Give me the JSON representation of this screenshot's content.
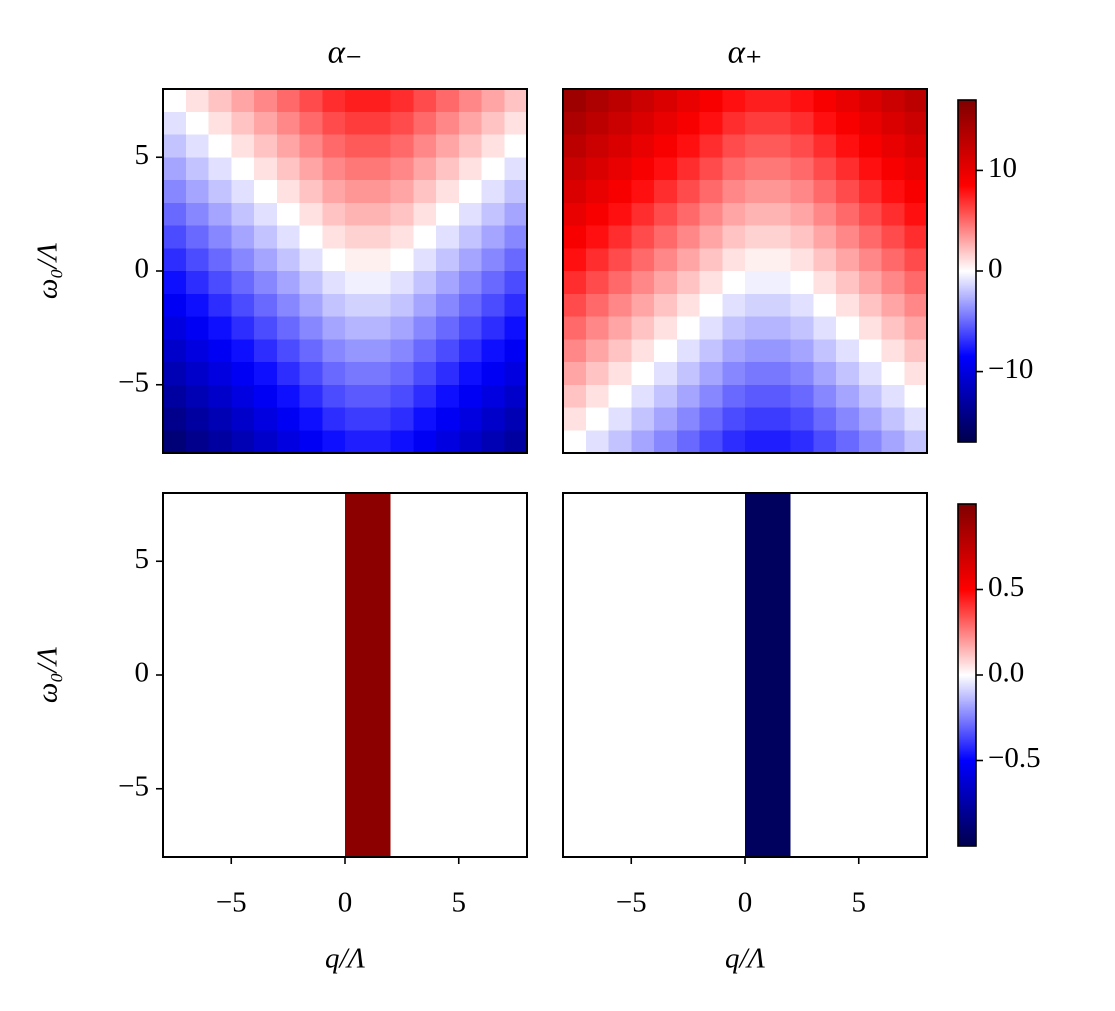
{
  "chart_data": [
    {
      "type": "heatmap",
      "title": "α₋",
      "colormap": "seismic",
      "clim": [
        -17,
        17
      ],
      "xlim": [
        -8,
        8
      ],
      "ylim": [
        -8,
        8
      ],
      "yticks": [
        {
          "value": -5,
          "label": "−5"
        },
        0,
        5
      ],
      "ylabel": "ω₀/Λ",
      "x": [
        -7.5,
        -6.5,
        -5.5,
        -4.5,
        -3.5,
        -2.5,
        -1.5,
        -0.5,
        0.5,
        1.5,
        2.5,
        3.5,
        4.5,
        5.5,
        6.5,
        7.5
      ],
      "y": [
        7.5,
        6.5,
        5.5,
        4.5,
        3.5,
        2.5,
        1.5,
        0.5,
        -0.5,
        -1.5,
        -2.5,
        -3.5,
        -4.5,
        -5.5,
        -6.5,
        -7.5
      ],
      "z": [
        [
          0,
          1,
          2,
          3,
          4,
          5,
          6,
          7,
          7.5,
          7.5,
          7,
          6,
          5,
          4,
          3,
          2
        ],
        [
          -1,
          0,
          1,
          2,
          3,
          4,
          5,
          6,
          6.5,
          6.5,
          6,
          5,
          4,
          3,
          2,
          1
        ],
        [
          -2,
          -1,
          0,
          1,
          2,
          3,
          4,
          5,
          5.5,
          5.5,
          5,
          4,
          3,
          2,
          1,
          0
        ],
        [
          -3,
          -2,
          -1,
          0,
          1,
          2,
          3,
          4,
          4.5,
          4.5,
          4,
          3,
          2,
          1,
          0,
          -1
        ],
        [
          -4,
          -3,
          -2,
          -1,
          0,
          1,
          2,
          3,
          3.5,
          3.5,
          3,
          2,
          1,
          0,
          -1,
          -2
        ],
        [
          -5,
          -4,
          -3,
          -2,
          -1,
          0,
          1,
          2,
          2.5,
          2.5,
          2,
          1,
          0,
          -1,
          -2,
          -3
        ],
        [
          -6,
          -5,
          -4,
          -3,
          -2,
          -1,
          0,
          1,
          1.5,
          1.5,
          1,
          0,
          -1,
          -2,
          -3,
          -4
        ],
        [
          -7,
          -6,
          -5,
          -4,
          -3,
          -2,
          -1,
          0,
          0.5,
          0.5,
          0,
          -1,
          -2,
          -3,
          -4,
          -5
        ],
        [
          -8,
          -7,
          -6,
          -5,
          -4,
          -3,
          -2,
          -1,
          -0.5,
          -0.5,
          -1,
          -2,
          -3,
          -4,
          -5,
          -6
        ],
        [
          -9,
          -8,
          -7,
          -6,
          -5,
          -4,
          -3,
          -2,
          -1.5,
          -1.5,
          -2,
          -3,
          -4,
          -5,
          -6,
          -7
        ],
        [
          -10,
          -9,
          -8,
          -7,
          -6,
          -5,
          -4,
          -3,
          -2.5,
          -2.5,
          -3,
          -4,
          -5,
          -6,
          -7,
          -8
        ],
        [
          -11,
          -10,
          -9,
          -8,
          -7,
          -6,
          -5,
          -4,
          -3.5,
          -3.5,
          -4,
          -5,
          -6,
          -7,
          -8,
          -9
        ],
        [
          -12,
          -11,
          -10,
          -9,
          -8,
          -7,
          -6,
          -5,
          -4.5,
          -4.5,
          -5,
          -6,
          -7,
          -8,
          -9,
          -10
        ],
        [
          -13,
          -12,
          -11,
          -10,
          -9,
          -8,
          -7,
          -6,
          -5.5,
          -5.5,
          -6,
          -7,
          -8,
          -9,
          -10,
          -11
        ],
        [
          -14,
          -13,
          -12,
          -11,
          -10,
          -9,
          -8,
          -7,
          -6.5,
          -6.5,
          -7,
          -8,
          -9,
          -10,
          -11,
          -12
        ],
        [
          -15,
          -14,
          -13,
          -12,
          -11,
          -10,
          -9,
          -8,
          -7.5,
          -7.5,
          -8,
          -9,
          -10,
          -11,
          -12,
          -13
        ]
      ]
    },
    {
      "type": "heatmap",
      "title": "α₊",
      "colormap": "seismic",
      "clim": [
        -17,
        17
      ],
      "xlim": [
        -8,
        8
      ],
      "ylim": [
        -8,
        8
      ],
      "colorbar_ticks": [
        {
          "value": -10,
          "label": "−10"
        },
        0,
        10
      ],
      "x": [
        -7.5,
        -6.5,
        -5.5,
        -4.5,
        -3.5,
        -2.5,
        -1.5,
        -0.5,
        0.5,
        1.5,
        2.5,
        3.5,
        4.5,
        5.5,
        6.5,
        7.5
      ],
      "y": [
        7.5,
        6.5,
        5.5,
        4.5,
        3.5,
        2.5,
        1.5,
        0.5,
        -0.5,
        -1.5,
        -2.5,
        -3.5,
        -4.5,
        -5.5,
        -6.5,
        -7.5
      ],
      "z": [
        [
          15,
          14,
          13,
          12,
          11,
          10,
          9,
          8,
          7.5,
          7.5,
          8,
          9,
          10,
          11,
          12,
          13
        ],
        [
          14,
          13,
          12,
          11,
          10,
          9,
          8,
          7,
          6.5,
          6.5,
          7,
          8,
          9,
          10,
          11,
          12
        ],
        [
          13,
          12,
          11,
          10,
          9,
          8,
          7,
          6,
          5.5,
          5.5,
          6,
          7,
          8,
          9,
          10,
          11
        ],
        [
          12,
          11,
          10,
          9,
          8,
          7,
          6,
          5,
          4.5,
          4.5,
          5,
          6,
          7,
          8,
          9,
          10
        ],
        [
          11,
          10,
          9,
          8,
          7,
          6,
          5,
          4,
          3.5,
          3.5,
          4,
          5,
          6,
          7,
          8,
          9
        ],
        [
          10,
          9,
          8,
          7,
          6,
          5,
          4,
          3,
          2.5,
          2.5,
          3,
          4,
          5,
          6,
          7,
          8
        ],
        [
          9,
          8,
          7,
          6,
          5,
          4,
          3,
          2,
          1.5,
          1.5,
          2,
          3,
          4,
          5,
          6,
          7
        ],
        [
          8,
          7,
          6,
          5,
          4,
          3,
          2,
          1,
          0.5,
          0.5,
          1,
          2,
          3,
          4,
          5,
          6
        ],
        [
          7,
          6,
          5,
          4,
          3,
          2,
          1,
          0,
          -0.5,
          -0.5,
          0,
          1,
          2,
          3,
          4,
          5
        ],
        [
          6,
          5,
          4,
          3,
          2,
          1,
          0,
          -1,
          -1.5,
          -1.5,
          -1,
          0,
          1,
          2,
          3,
          4
        ],
        [
          5,
          4,
          3,
          2,
          1,
          0,
          -1,
          -2,
          -2.5,
          -2.5,
          -2,
          -1,
          0,
          1,
          2,
          3
        ],
        [
          4,
          3,
          2,
          1,
          0,
          -1,
          -2,
          -3,
          -3.5,
          -3.5,
          -3,
          -2,
          -1,
          0,
          1,
          2
        ],
        [
          3,
          2,
          1,
          0,
          -1,
          -2,
          -3,
          -4,
          -4.5,
          -4.5,
          -4,
          -3,
          -2,
          -1,
          0,
          1
        ],
        [
          2,
          1,
          0,
          -1,
          -2,
          -3,
          -4,
          -5,
          -5.5,
          -5.5,
          -5,
          -4,
          -3,
          -2,
          -1,
          0
        ],
        [
          1,
          0,
          -1,
          -2,
          -3,
          -4,
          -5,
          -6,
          -6.5,
          -6.5,
          -6,
          -5,
          -4,
          -3,
          -2,
          -1
        ],
        [
          0,
          -1,
          -2,
          -3,
          -4,
          -5,
          -6,
          -7,
          -7.5,
          -7.5,
          -7,
          -6,
          -5,
          -4,
          -3,
          -2
        ]
      ]
    },
    {
      "type": "heatmap",
      "colormap": "seismic",
      "clim": [
        -1,
        1
      ],
      "xlim": [
        -8,
        8
      ],
      "ylim": [
        -8,
        8
      ],
      "xticks": [
        {
          "value": -5,
          "label": "−5"
        },
        0,
        5
      ],
      "xlabel": "q/Λ",
      "yticks": [
        {
          "value": -5,
          "label": "−5"
        },
        0,
        5
      ],
      "ylabel": "ω₀/Λ",
      "x": [
        -7.5,
        -6.5,
        -5.5,
        -4.5,
        -3.5,
        -2.5,
        -1.5,
        -0.5,
        0.5,
        1.5,
        2.5,
        3.5,
        4.5,
        5.5,
        6.5,
        7.5
      ],
      "y": [
        6,
        2,
        -2,
        -6
      ],
      "z": [
        [
          0,
          0,
          0,
          0,
          0,
          0,
          0,
          0,
          0.95,
          0.95,
          0,
          0,
          0,
          0,
          0,
          0
        ],
        [
          0,
          0,
          0,
          0,
          0,
          0,
          0,
          0,
          0.95,
          0.95,
          0,
          0,
          0,
          0,
          0,
          0
        ],
        [
          0,
          0,
          0,
          0,
          0,
          0,
          0,
          0,
          0.95,
          0.95,
          0,
          0,
          0,
          0,
          0,
          0
        ],
        [
          0,
          0,
          0,
          0,
          0,
          0,
          0,
          0,
          0.95,
          0.95,
          0,
          0,
          0,
          0,
          0,
          0
        ]
      ]
    },
    {
      "type": "heatmap",
      "colormap": "seismic",
      "clim": [
        -1,
        1
      ],
      "xlim": [
        -8,
        8
      ],
      "ylim": [
        -8,
        8
      ],
      "xticks": [
        {
          "value": -5,
          "label": "−5"
        },
        0,
        5
      ],
      "xlabel": "q/Λ",
      "colorbar_ticks": [
        {
          "value": -0.5,
          "label": "−0.5"
        },
        {
          "value": 0,
          "label": "0.0"
        },
        0.5
      ],
      "x": [
        -7.5,
        -6.5,
        -5.5,
        -4.5,
        -3.5,
        -2.5,
        -1.5,
        -0.5,
        0.5,
        1.5,
        2.5,
        3.5,
        4.5,
        5.5,
        6.5,
        7.5
      ],
      "y": [
        6,
        2,
        -2,
        -6
      ],
      "z": [
        [
          0,
          0,
          0,
          0,
          0,
          0,
          0,
          0,
          -0.95,
          -0.95,
          0,
          0,
          0,
          0,
          0,
          0
        ],
        [
          0,
          0,
          0,
          0,
          0,
          0,
          0,
          0,
          -0.95,
          -0.95,
          0,
          0,
          0,
          0,
          0,
          0
        ],
        [
          0,
          0,
          0,
          0,
          0,
          0,
          0,
          0,
          -0.95,
          -0.95,
          0,
          0,
          0,
          0,
          0,
          0
        ],
        [
          0,
          0,
          0,
          0,
          0,
          0,
          0,
          0,
          -0.95,
          -0.95,
          0,
          0,
          0,
          0,
          0,
          0
        ]
      ]
    }
  ]
}
